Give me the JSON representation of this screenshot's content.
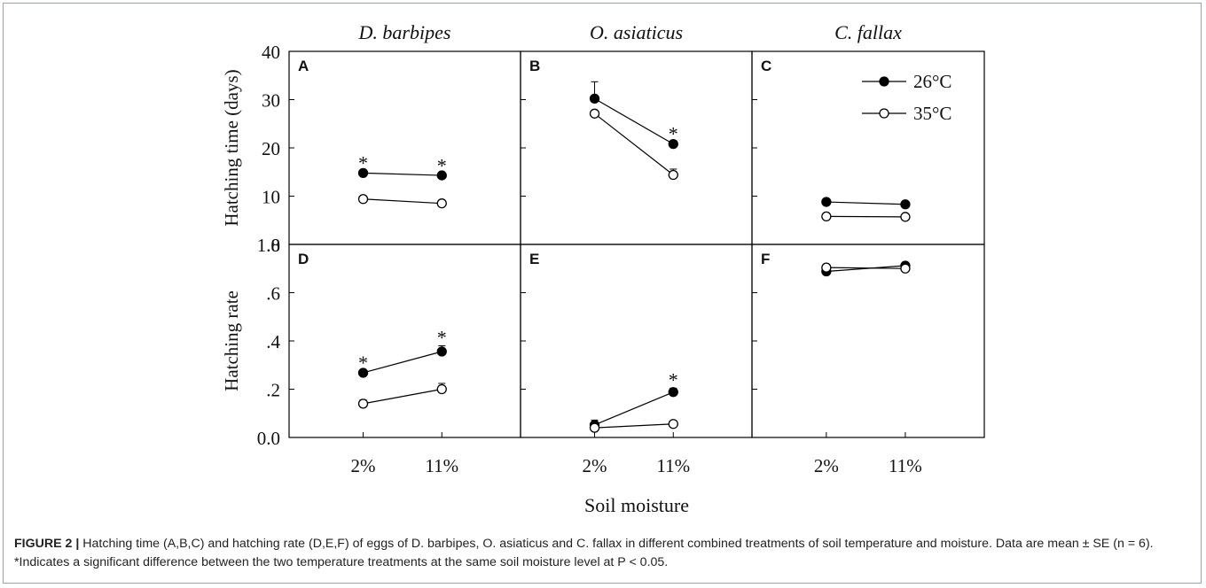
{
  "caption": {
    "label": "FIGURE 2 |",
    "text": " Hatching time (A,B,C) and hatching rate (D,E,F) of eggs of D. barbipes, O. asiaticus and C. fallax in different combined treatments of soil temperature and moisture. Data are mean ± SE (n = 6). *Indicates a significant difference between the two temperature treatments at the same soil moisture level at P < 0.05."
  },
  "chart_data": {
    "type": "line",
    "xlabel": "Soil moisture",
    "categories": [
      "2%",
      "11%"
    ],
    "legend": {
      "placement": "top-right of panel C",
      "entries": [
        {
          "name": "26°C",
          "marker": "filled-circle"
        },
        {
          "name": "35°C",
          "marker": "open-circle"
        }
      ]
    },
    "rows": [
      {
        "ylabel": "Hatching time (days)",
        "ylim": [
          0,
          40
        ],
        "ticks": [
          "40",
          "30",
          "20",
          "10",
          "1.0"
        ]
      },
      {
        "ylabel": "Hatching rate",
        "ylim": [
          0,
          1.0
        ],
        "ticks": [
          ".8",
          ".6",
          ".4",
          ".2",
          "0.0"
        ]
      }
    ],
    "species": [
      "D. barbipes",
      "O. asiaticus",
      "C. fallax"
    ],
    "panels": [
      {
        "letter": "A",
        "row": 0,
        "col": 0,
        "series": [
          {
            "name": "26°C",
            "values": [
              14.8,
              14.3
            ],
            "err": [
              0.3,
              0.3
            ],
            "sig": [
              true,
              true
            ]
          },
          {
            "name": "35°C",
            "values": [
              9.4,
              8.5
            ],
            "err": [
              0.3,
              0.3
            ]
          }
        ]
      },
      {
        "letter": "B",
        "row": 0,
        "col": 1,
        "series": [
          {
            "name": "26°C",
            "values": [
              30.2,
              20.8
            ],
            "err": [
              3.5,
              0.4
            ],
            "sig": [
              false,
              true
            ]
          },
          {
            "name": "35°C",
            "values": [
              27.1,
              14.4
            ],
            "err": [
              0.4,
              1.2
            ]
          }
        ]
      },
      {
        "letter": "C",
        "row": 0,
        "col": 2,
        "series": [
          {
            "name": "26°C",
            "values": [
              8.8,
              8.3
            ],
            "err": [
              0.2,
              0.2
            ],
            "sig": [
              false,
              false
            ]
          },
          {
            "name": "35°C",
            "values": [
              5.8,
              5.7
            ],
            "err": [
              0.2,
              0.2
            ]
          }
        ]
      },
      {
        "letter": "D",
        "row": 1,
        "col": 0,
        "series": [
          {
            "name": "26°C",
            "values": [
              0.335,
              0.445
            ],
            "err": [
              0.01,
              0.03
            ],
            "sig": [
              true,
              true
            ]
          },
          {
            "name": "35°C",
            "values": [
              0.175,
              0.25
            ],
            "err": [
              0.02,
              0.03
            ]
          }
        ]
      },
      {
        "letter": "E",
        "row": 1,
        "col": 1,
        "series": [
          {
            "name": "26°C",
            "values": [
              0.065,
              0.235
            ],
            "err": [
              0.025,
              0.02
            ],
            "sig": [
              false,
              true
            ]
          },
          {
            "name": "35°C",
            "values": [
              0.05,
              0.07
            ],
            "err": [
              0.01,
              0.01
            ]
          }
        ]
      },
      {
        "letter": "F",
        "row": 1,
        "col": 2,
        "series": [
          {
            "name": "26°C",
            "values": [
              0.86,
              0.89
            ],
            "err": [
              0.01,
              0.01
            ],
            "sig": [
              false,
              false
            ]
          },
          {
            "name": "35°C",
            "values": [
              0.88,
              0.875
            ],
            "err": [
              0.01,
              0.01
            ]
          }
        ]
      }
    ]
  }
}
